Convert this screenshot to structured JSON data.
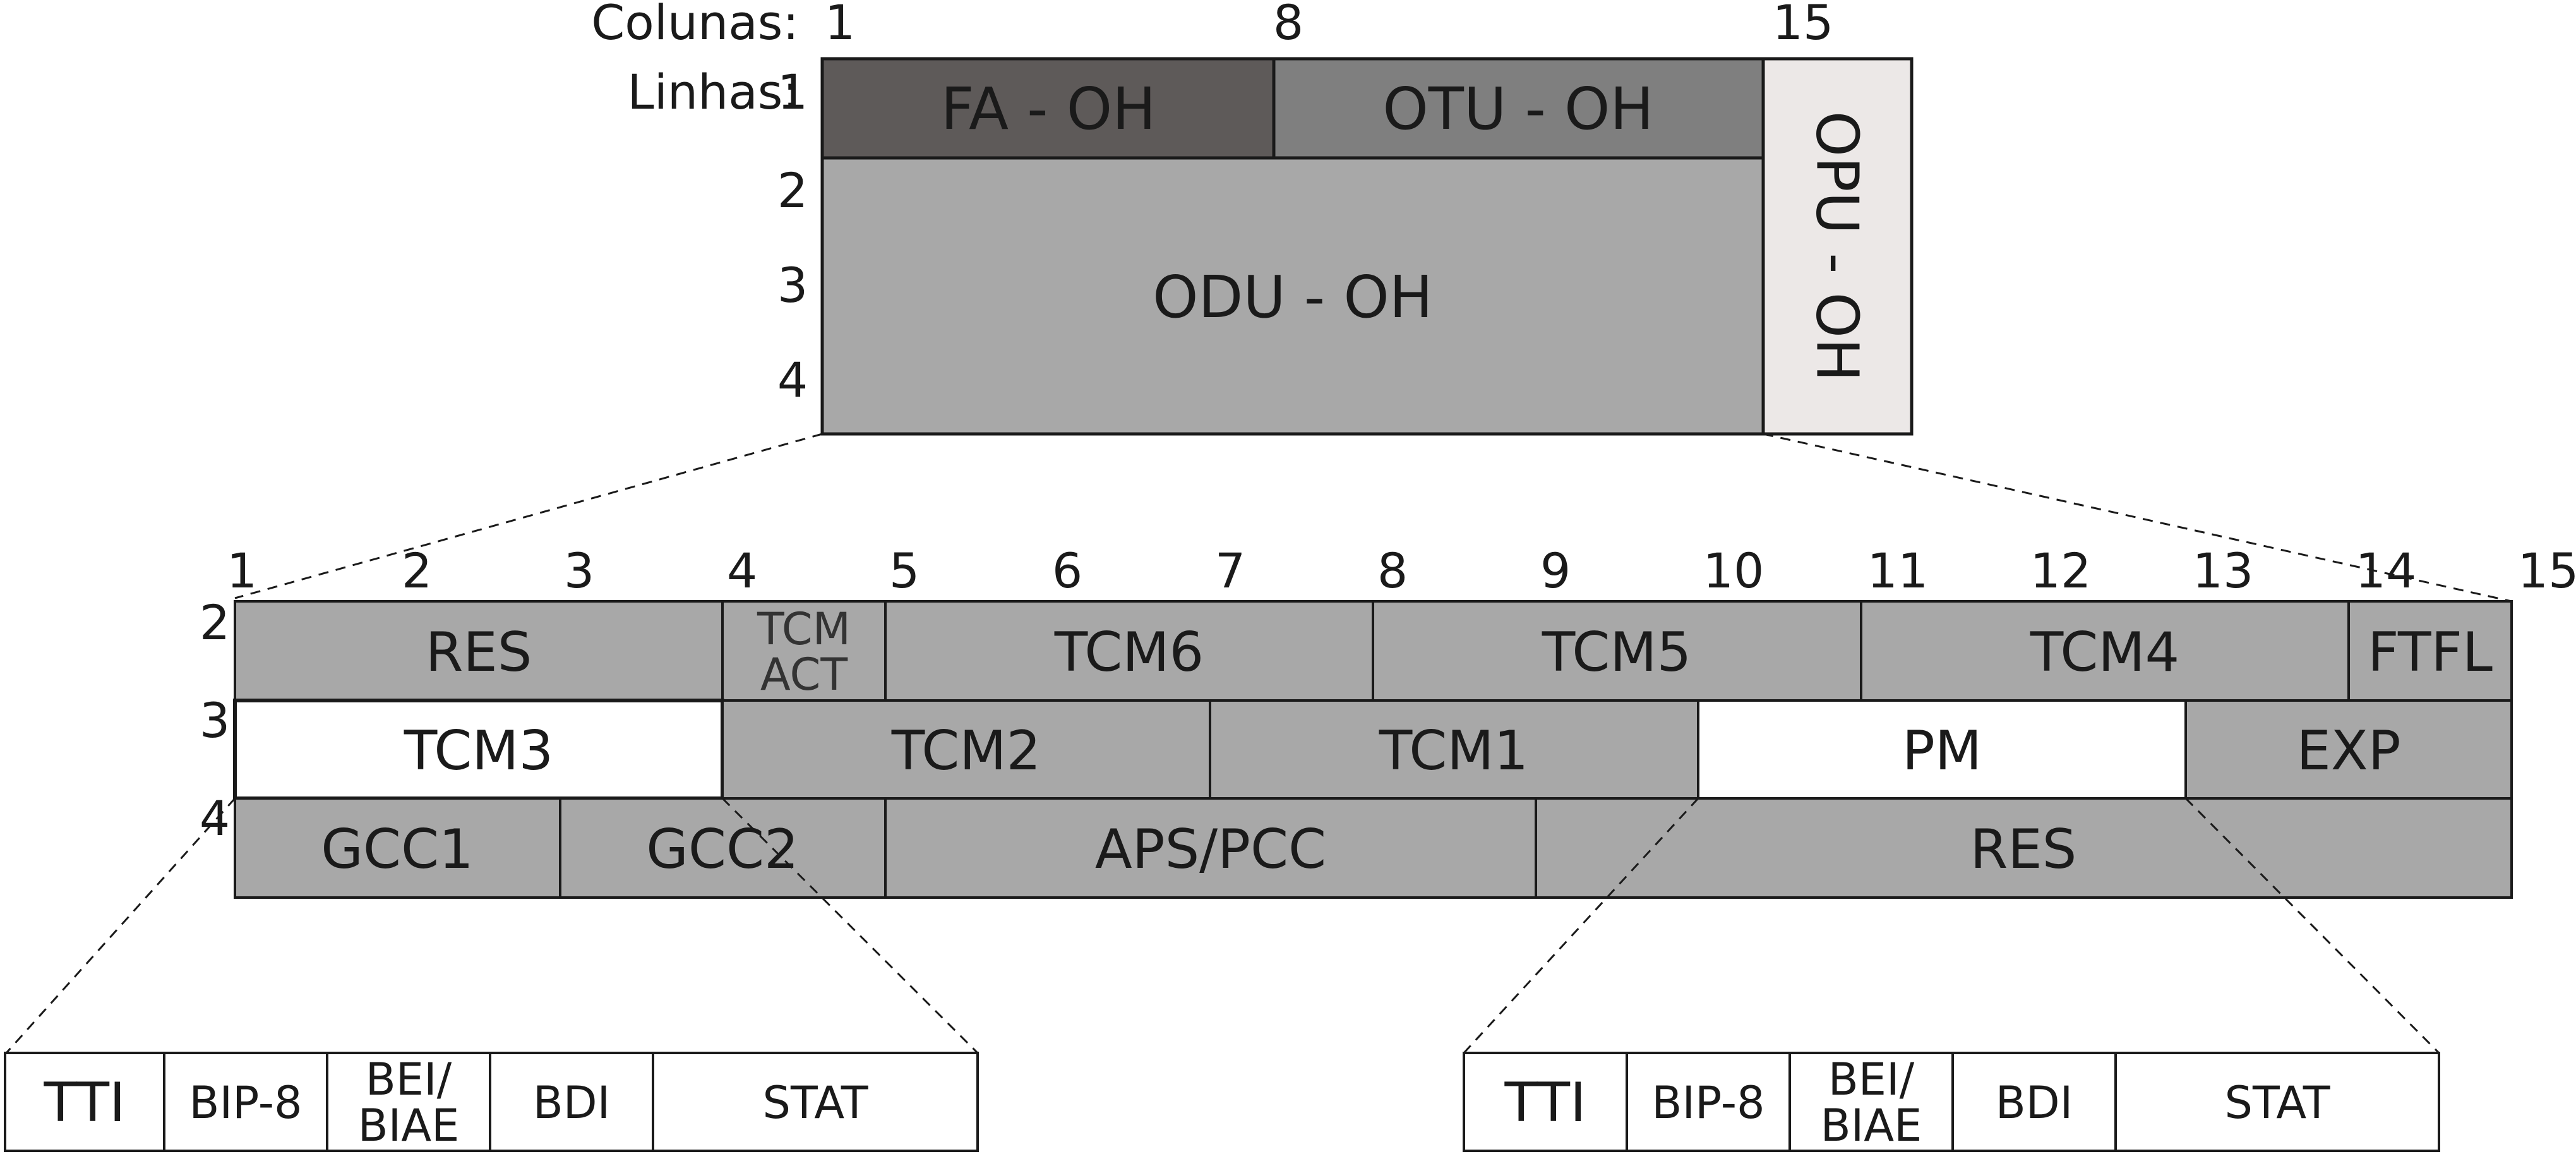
{
  "header": {
    "columns_label": "Colunas:",
    "rows_label": "Linhas:",
    "col_numbers": [
      "1",
      "8",
      "15"
    ],
    "row_numbers": [
      "1",
      "2",
      "3",
      "4"
    ]
  },
  "top_frame": {
    "fa_oh": "FA - OH",
    "otu_oh": "OTU - OH",
    "odu_oh": "ODU - OH",
    "opu_oh": "OPU - OH"
  },
  "odu_detail": {
    "col_numbers": [
      "1",
      "2",
      "3",
      "4",
      "5",
      "6",
      "7",
      "8",
      "9",
      "10",
      "11",
      "12",
      "13",
      "14",
      "15"
    ],
    "row_numbers": [
      "2",
      "3",
      "4"
    ],
    "row2": {
      "res": "RES",
      "tcm_act_line1": "TCM",
      "tcm_act_line2": "ACT",
      "tcm6": "TCM6",
      "tcm5": "TCM5",
      "tcm4": "TCM4",
      "ftfl": "FTFL"
    },
    "row3": {
      "tcm3": "TCM3",
      "tcm2": "TCM2",
      "tcm1": "TCM1",
      "pm": "PM",
      "exp": "EXP"
    },
    "row4": {
      "gcc1": "GCC1",
      "gcc2": "GCC2",
      "aps_pcc": "APS/PCC",
      "res": "RES"
    }
  },
  "tcm3_breakdown": {
    "tti": "TTI",
    "bip8": "BIP-8",
    "bei_line1": "BEI/",
    "bei_line2": "BIAE",
    "bdi": "BDI",
    "stat": "STAT"
  },
  "pm_breakdown": {
    "tti": "TTI",
    "bip8": "BIP-8",
    "bei_line1": "BEI/",
    "bei_line2": "BIAE",
    "bdi": "BDI",
    "stat": "STAT"
  },
  "colors": {
    "fa_oh": "#5e5a59",
    "otu_oh": "#7f7f7f",
    "odu_oh": "#a8a8a8",
    "opu_oh": "#ece8e7",
    "detail_gray": "#a8a8a8",
    "highlight_white": "#ffffff"
  }
}
